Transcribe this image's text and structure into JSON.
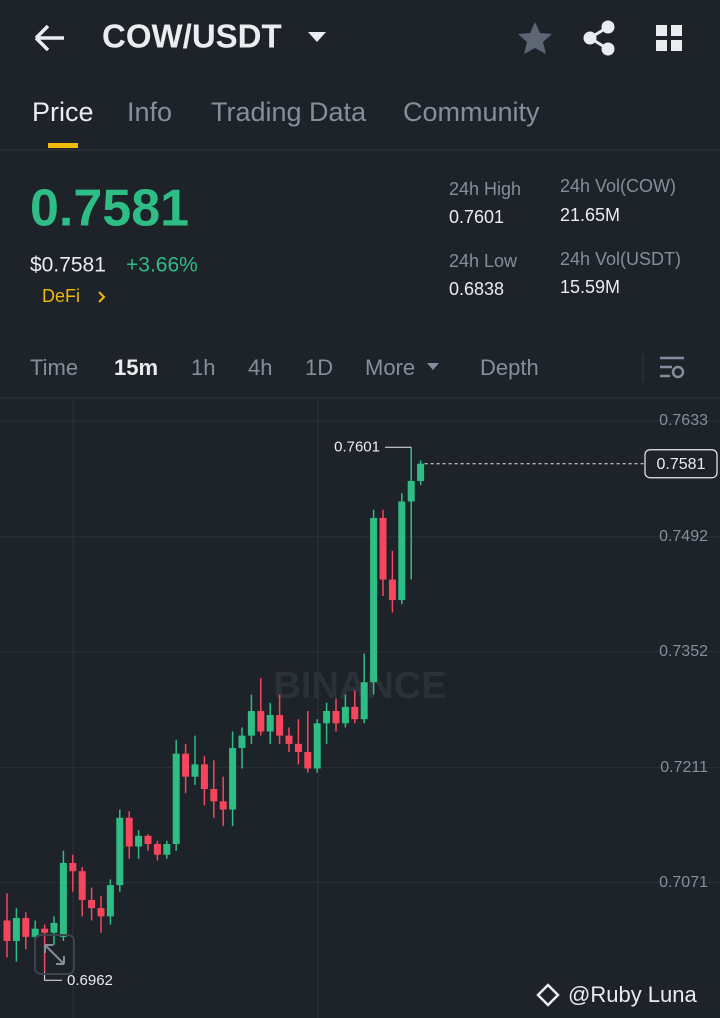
{
  "header": {
    "pair": "COW/USDT"
  },
  "tabs": [
    "Price",
    "Info",
    "Trading Data",
    "Community"
  ],
  "price": {
    "last": "0.7581",
    "usd": "$0.7581",
    "change": "+3.66%",
    "tag": "DeFi"
  },
  "stats": [
    {
      "label": "24h High",
      "value": "0.7601"
    },
    {
      "label": "24h Vol(COW)",
      "value": "21.65M"
    },
    {
      "label": "24h Low",
      "value": "0.6838"
    },
    {
      "label": "24h Vol(USDT)",
      "value": "15.59M"
    }
  ],
  "intervals": [
    "Time",
    "15m",
    "1h",
    "4h",
    "1D",
    "More",
    "Depth"
  ],
  "chart_data": {
    "type": "candlestick",
    "open": [
      0.7025,
      0.7,
      0.7028,
      0.7005,
      0.7015,
      0.701,
      0.7005,
      0.7095,
      0.7085,
      0.705,
      0.704,
      0.703,
      0.7068,
      0.715,
      0.7115,
      0.7128,
      0.7118,
      0.7105,
      0.7118,
      0.7228,
      0.72,
      0.7215,
      0.7185,
      0.717,
      0.716,
      0.7235,
      0.725,
      0.728,
      0.7255,
      0.7275,
      0.725,
      0.724,
      0.723,
      0.721,
      0.7265,
      0.728,
      0.7265,
      0.7285,
      0.727,
      0.7315,
      0.7515,
      0.744,
      0.7415,
      0.7535,
      0.756
    ],
    "high": [
      0.7058,
      0.704,
      0.7035,
      0.7025,
      0.702,
      0.703,
      0.711,
      0.7105,
      0.709,
      0.7065,
      0.7055,
      0.7075,
      0.716,
      0.7158,
      0.7135,
      0.713,
      0.7122,
      0.7122,
      0.7245,
      0.724,
      0.725,
      0.7225,
      0.722,
      0.72,
      0.7255,
      0.726,
      0.73,
      0.732,
      0.729,
      0.73,
      0.726,
      0.727,
      0.728,
      0.727,
      0.729,
      0.7295,
      0.73,
      0.7305,
      0.735,
      0.7525,
      0.7525,
      0.7475,
      0.7545,
      0.7601,
      0.7585
    ],
    "low": [
      0.698,
      0.6975,
      0.699,
      0.6985,
      0.6962,
      0.6995,
      0.7,
      0.706,
      0.703,
      0.7025,
      0.701,
      0.702,
      0.706,
      0.71,
      0.71,
      0.711,
      0.7098,
      0.71,
      0.711,
      0.718,
      0.719,
      0.7165,
      0.715,
      0.714,
      0.714,
      0.721,
      0.724,
      0.725,
      0.724,
      0.724,
      0.723,
      0.7215,
      0.7205,
      0.7205,
      0.724,
      0.7255,
      0.726,
      0.7265,
      0.7265,
      0.73,
      0.742,
      0.74,
      0.741,
      0.744,
      0.7555
    ],
    "close": [
      0.7,
      0.7028,
      0.7005,
      0.7015,
      0.701,
      0.7022,
      0.7095,
      0.7085,
      0.705,
      0.704,
      0.703,
      0.7068,
      0.715,
      0.7115,
      0.7128,
      0.7118,
      0.7105,
      0.7118,
      0.7228,
      0.72,
      0.7215,
      0.7185,
      0.717,
      0.716,
      0.7235,
      0.725,
      0.728,
      0.7255,
      0.7275,
      0.725,
      0.724,
      0.723,
      0.721,
      0.7265,
      0.728,
      0.7265,
      0.7285,
      0.727,
      0.7315,
      0.7515,
      0.744,
      0.7415,
      0.7535,
      0.756,
      0.7581
    ],
    "ylim": [
      0.6916,
      0.7661
    ],
    "yticks": [
      0.7071,
      0.7211,
      0.7352,
      0.7492,
      0.7633
    ],
    "high_marker": 0.7601,
    "low_marker": 0.6962,
    "last_price": 0.7581,
    "up_color": "#2ebd85",
    "down_color": "#f6465d",
    "watermark": "BINANCE"
  },
  "footer": {
    "credit": "@Ruby Luna"
  }
}
